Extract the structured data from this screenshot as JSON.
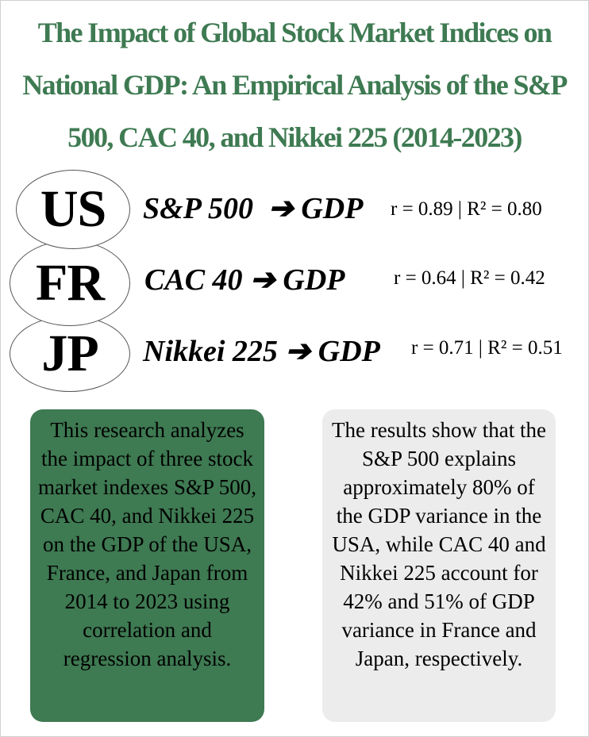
{
  "title": "The Impact of Global Stock Market Indices on National GDP: An Empirical Analysis of the S&P 500, CAC 40, and Nikkei 225 (2014-2023)",
  "rows": [
    {
      "code": "US",
      "relation": "S&P 500  ➔ GDP",
      "stat": "r = 0.89 | R² = 0.80"
    },
    {
      "code": "FR",
      "relation": "CAC 40 ➔ GDP",
      "stat": "r = 0.64 | R² = 0.42"
    },
    {
      "code": "JP",
      "relation": "Nikkei 225 ➔ GDP",
      "stat": "r = 0.71 | R² = 0.51"
    }
  ],
  "summary_box": "This research analyzes the impact of three stock market indexes S&P 500, CAC 40, and Nikkei 225 on the GDP of the USA, France, and Japan from 2014 to 2023 using correlation and regression analysis.",
  "results_box": "The results show that the S&P 500 explains approximately 80% of the GDP variance in the USA, while CAC 40 and Nikkei 225 account for 42% and 51% of GDP variance in France and Japan, respectively.",
  "colors": {
    "accent_green": "#3e7a52",
    "results_gray": "#ececec"
  }
}
